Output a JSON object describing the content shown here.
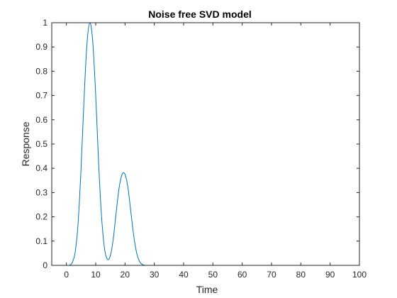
{
  "chart_data": {
    "type": "line",
    "title": "Noise free SVD model",
    "xlabel": "Time",
    "ylabel": "Response",
    "xlim": [
      -5,
      100
    ],
    "ylim": [
      0,
      1
    ],
    "xticks": [
      "0",
      "10",
      "20",
      "30",
      "40",
      "50",
      "60",
      "70",
      "80",
      "90",
      "100"
    ],
    "yticks": [
      "0",
      "0.1",
      "0.2",
      "0.3",
      "0.4",
      "0.5",
      "0.6",
      "0.7",
      "0.8",
      "0.9",
      "1"
    ],
    "grid": false,
    "legend": "none",
    "series": [
      {
        "color": "#0072bd",
        "x": [
          0,
          1,
          2,
          3,
          4,
          5,
          6,
          7,
          8,
          9,
          10,
          11,
          12,
          13,
          14,
          15,
          16,
          17,
          18,
          19,
          20,
          21,
          22,
          23,
          24,
          25,
          26,
          27,
          28,
          30,
          35,
          40,
          50,
          60,
          70,
          80,
          90,
          100
        ],
        "y": [
          0.0,
          0.0,
          0.012,
          0.055,
          0.175,
          0.4,
          0.68,
          0.91,
          1.0,
          0.92,
          0.7,
          0.42,
          0.2,
          0.07,
          0.025,
          0.04,
          0.11,
          0.22,
          0.32,
          0.375,
          0.375,
          0.32,
          0.22,
          0.12,
          0.05,
          0.015,
          0.003,
          0.0,
          0.0,
          0.0,
          0.0,
          0.0,
          0.0,
          0.0,
          0.0,
          0.0,
          0.0,
          0.0
        ]
      }
    ]
  }
}
